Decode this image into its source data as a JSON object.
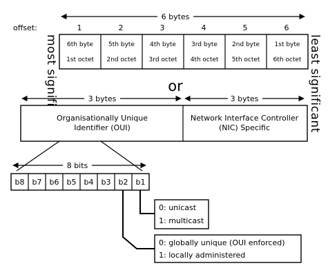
{
  "top_span_label": "6 bytes",
  "offset_label": "offset:",
  "offsets": [
    "1",
    "2",
    "3",
    "4",
    "5",
    "6"
  ],
  "byte_cells": [
    {
      "byte": "6th byte",
      "octet": "1st octet"
    },
    {
      "byte": "5th byte",
      "octet": "2nd octet"
    },
    {
      "byte": "4th byte",
      "octet": "3rd octet"
    },
    {
      "byte": "3rd byte",
      "octet": "4th octet"
    },
    {
      "byte": "2nd byte",
      "octet": "5th octet"
    },
    {
      "byte": "1st byte",
      "octet": "6th octet"
    }
  ],
  "side_left": "most significant",
  "side_right": "least significant",
  "or_label": "or",
  "oui": {
    "span_label": "3 bytes",
    "line1": "Organisationally Unique",
    "line2": "Identifier (OUI)"
  },
  "nic": {
    "span_label": "3 bytes",
    "line1": "Network Interface Controller",
    "line2": "(NIC) Specific"
  },
  "bits_span_label": "8 bits",
  "bits": [
    "b8",
    "b7",
    "b6",
    "b5",
    "b4",
    "b3",
    "b2",
    "b1"
  ],
  "b1_legend": [
    "0: unicast",
    "1: multicast"
  ],
  "b2_legend": [
    "0: globally unique (OUI enforced)",
    "1: locally administered"
  ]
}
